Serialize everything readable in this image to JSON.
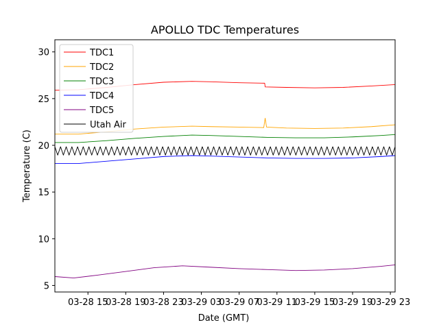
{
  "chart_data": {
    "type": "line",
    "title": "APOLLO TDC Temperatures",
    "xlabel": "Date (GMT)",
    "ylabel": "Temperature (C)",
    "x_unit": "hours since 03-28 00:00 GMT",
    "xlim": [
      11.5,
      47.5
    ],
    "ylim": [
      4.3,
      31.3
    ],
    "grid": false,
    "legend_position": "upper-left",
    "x_ticks": [
      {
        "value": 15,
        "label": "03-28 15"
      },
      {
        "value": 19,
        "label": "03-28 19"
      },
      {
        "value": 23,
        "label": "03-28 23"
      },
      {
        "value": 27,
        "label": "03-29 03"
      },
      {
        "value": 31,
        "label": "03-29 07"
      },
      {
        "value": 35,
        "label": "03-29 11"
      },
      {
        "value": 39,
        "label": "03-29 15"
      },
      {
        "value": 43,
        "label": "03-29 19"
      },
      {
        "value": 47,
        "label": "03-29 23"
      }
    ],
    "y_ticks": [
      {
        "value": 5,
        "label": "5"
      },
      {
        "value": 10,
        "label": "10"
      },
      {
        "value": 15,
        "label": "15"
      },
      {
        "value": 20,
        "label": "20"
      },
      {
        "value": 25,
        "label": "25"
      },
      {
        "value": 30,
        "label": "30"
      }
    ],
    "series": [
      {
        "name": "TDC1",
        "color": "#ff0000",
        "x": [
          11.5,
          14,
          17,
          20,
          23,
          26,
          28,
          31,
          33.7,
          33.75,
          36,
          39,
          42,
          45,
          47.5
        ],
        "y": [
          25.9,
          25.95,
          26.2,
          26.5,
          26.75,
          26.85,
          26.8,
          26.7,
          26.65,
          26.25,
          26.2,
          26.15,
          26.2,
          26.35,
          26.5
        ]
      },
      {
        "name": "TDC2",
        "color": "#ffa500",
        "x": [
          11.5,
          14,
          17,
          20,
          23,
          26,
          28,
          31,
          33.6,
          33.75,
          33.9,
          36,
          39,
          42,
          45,
          47.5
        ],
        "y": [
          21.2,
          21.2,
          21.45,
          21.75,
          21.95,
          22.05,
          22.0,
          21.95,
          21.9,
          22.9,
          21.95,
          21.85,
          21.8,
          21.85,
          22.0,
          22.2
        ]
      },
      {
        "name": "TDC3",
        "color": "#008000",
        "x": [
          11.5,
          14,
          17,
          20,
          23,
          26,
          28,
          31,
          34,
          37,
          40,
          43,
          46,
          47.5
        ],
        "y": [
          20.3,
          20.3,
          20.5,
          20.75,
          20.95,
          21.1,
          21.05,
          20.95,
          20.85,
          20.8,
          20.8,
          20.9,
          21.05,
          21.15
        ]
      },
      {
        "name": "TDC4",
        "color": "#0000ff",
        "x": [
          11.5,
          14,
          17,
          20,
          23,
          26,
          28,
          31,
          34,
          37,
          40,
          43,
          46,
          47.5
        ],
        "y": [
          18.05,
          18.05,
          18.3,
          18.55,
          18.8,
          18.9,
          18.85,
          18.75,
          18.65,
          18.6,
          18.6,
          18.65,
          18.8,
          18.9
        ]
      },
      {
        "name": "TDC5",
        "color": "#800080",
        "x": [
          11.5,
          13.5,
          16,
          19,
          22,
          25,
          28,
          31,
          34,
          37,
          40,
          43,
          46,
          47.5
        ],
        "y": [
          5.95,
          5.8,
          6.1,
          6.5,
          6.9,
          7.1,
          6.95,
          6.8,
          6.7,
          6.6,
          6.65,
          6.8,
          7.05,
          7.2
        ]
      },
      {
        "name": "Utah Air",
        "color": "#000000",
        "style": "sawtooth",
        "baseline": 19.4,
        "amplitude": 0.45,
        "period_hours": 0.6,
        "x_range": [
          11.5,
          47.5
        ]
      }
    ]
  }
}
